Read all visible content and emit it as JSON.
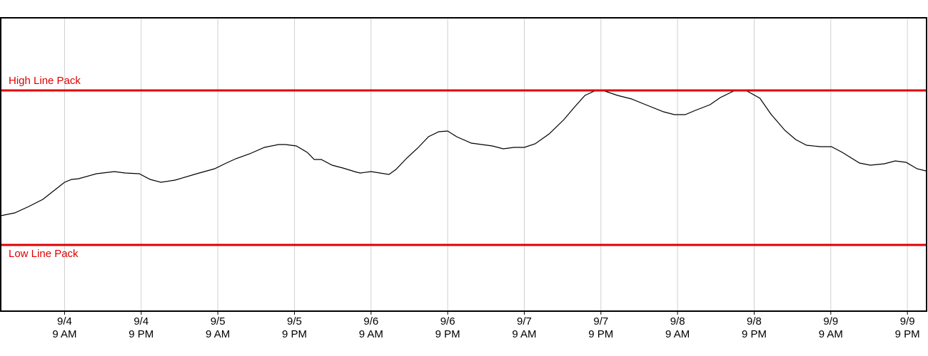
{
  "chart_data": {
    "type": "line",
    "x": [
      -1.0,
      1.2,
      3.4,
      5.6,
      7.3,
      9.0,
      10.1,
      11.2,
      14.0,
      16.8,
      18.5,
      20.7,
      22.4,
      24.1,
      26.3,
      29.7,
      32.5,
      34.1,
      35.8,
      38.0,
      40.3,
      42.5,
      43.6,
      45.3,
      47.0,
      48.1,
      49.2,
      50.9,
      52.6,
      54.8,
      55.3,
      57.0,
      59.8,
      60.9,
      62.6,
      64.3,
      66.0,
      67.6,
      69.0,
      70.4,
      72.7,
      76.0,
      77.7,
      79.4,
      81.0,
      82.7,
      84.9,
      87.2,
      88.9,
      90.5,
      92.2,
      93.3,
      95.6,
      97.8,
      100.0,
      102.8,
      104.5,
      106.2,
      107.8,
      110.1,
      111.7,
      114.0,
      115.7,
      117.9,
      119.6,
      121.8,
      123.5,
      125.2,
      127.4,
      129.1,
      130.8,
      133.5,
      135.2,
      137.4,
      139.1,
      140.8,
      142.5,
      143.9
    ],
    "series": [
      {
        "color": "#000000",
        "values": [
          134,
          138,
          147,
          157,
          169,
          181,
          185,
          186,
          193,
          196,
          194,
          193,
          185,
          181,
          184,
          193,
          200,
          207,
          214,
          221,
          230,
          234,
          234,
          232,
          223,
          213,
          213,
          205,
          201,
          195,
          194,
          196,
          192,
          199,
          215,
          229,
          245,
          252,
          253,
          245,
          236,
          232,
          228,
          230,
          230,
          235,
          249,
          269,
          287,
          303,
          310,
          310,
          303,
          298,
          290,
          280,
          276,
          276,
          282,
          290,
          300,
          310,
          310,
          299,
          277,
          254,
          241,
          233,
          231,
          231,
          223,
          208,
          205,
          207,
          211,
          209,
          200,
          197
        ]
      }
    ],
    "reference_lines": [
      {
        "label": "High Line Pack",
        "value": 310,
        "color": "#e00000"
      },
      {
        "label": "Low Line Pack",
        "value": 93,
        "color": "#e00000"
      }
    ],
    "xlim": [
      -1,
      144
    ],
    "ylim": [
      0,
      412
    ],
    "xticks": [
      {
        "value": 9,
        "label": [
          "9/4",
          "9 AM"
        ]
      },
      {
        "value": 21,
        "label": [
          "9/4",
          "9 PM"
        ]
      },
      {
        "value": 33,
        "label": [
          "9/5",
          "9 AM"
        ]
      },
      {
        "value": 45,
        "label": [
          "9/5",
          "9 PM"
        ]
      },
      {
        "value": 57,
        "label": [
          "9/6",
          "9 AM"
        ]
      },
      {
        "value": 69,
        "label": [
          "9/6",
          "9 PM"
        ]
      },
      {
        "value": 81,
        "label": [
          "9/7",
          "9 AM"
        ]
      },
      {
        "value": 93,
        "label": [
          "9/7",
          "9 PM"
        ]
      },
      {
        "value": 105,
        "label": [
          "9/8",
          "9 AM"
        ]
      },
      {
        "value": 117,
        "label": [
          "9/8",
          "9 PM"
        ]
      },
      {
        "value": 129,
        "label": [
          "9/9",
          "9 AM"
        ]
      },
      {
        "value": 141,
        "label": [
          "9/9",
          "9 PM"
        ]
      }
    ],
    "grid": true
  }
}
